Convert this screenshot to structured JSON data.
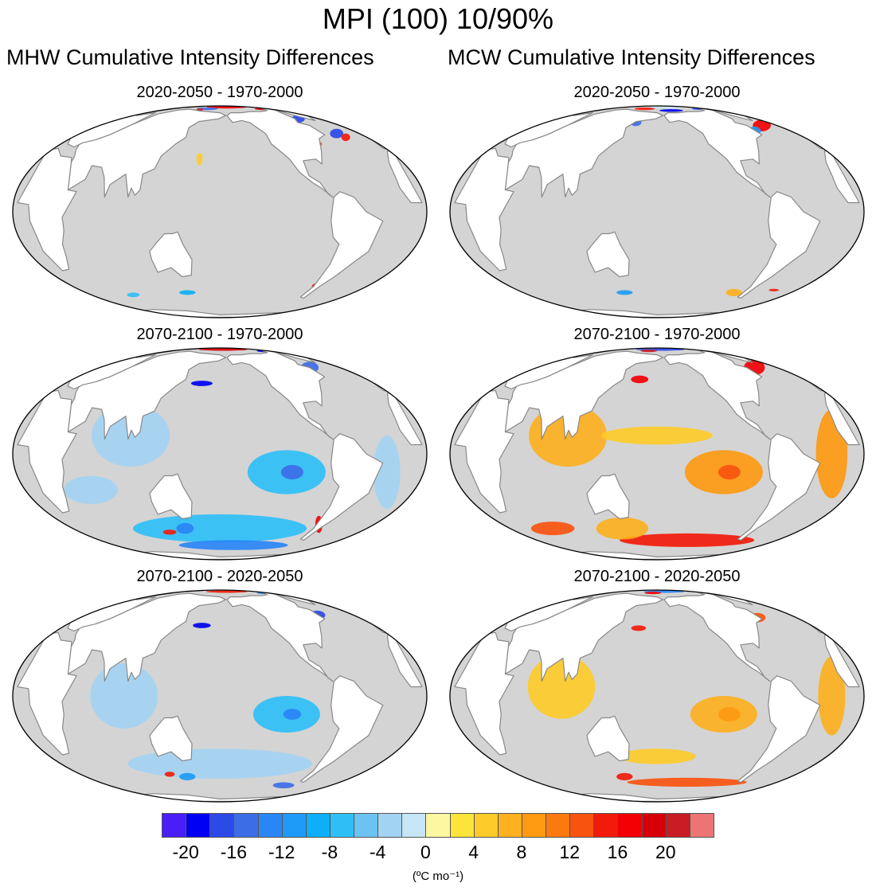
{
  "title": "MPI (100) 10/90%",
  "columns": [
    "MHW Cumulative Intensity Differences",
    "MCW Cumulative Intensity Differences"
  ],
  "panels": [
    {
      "title": "2020-2050 - 1970-2000",
      "variable": "MHW",
      "period": "2020-2050 minus 1970-2000"
    },
    {
      "title": "2020-2050 - 1970-2000",
      "variable": "MCW",
      "period": "2020-2050 minus 1970-2000"
    },
    {
      "title": "2070-2100 - 1970-2000",
      "variable": "MHW",
      "period": "2070-2100 minus 1970-2000"
    },
    {
      "title": "2070-2100 - 1970-2000",
      "variable": "MCW",
      "period": "2070-2100 minus 1970-2000"
    },
    {
      "title": "2070-2100 - 2020-2050",
      "variable": "MHW",
      "period": "2070-2100 minus 2020-2050"
    },
    {
      "title": "2070-2100 - 2020-2050",
      "variable": "MCW",
      "period": "2070-2100 minus 2020-2050"
    }
  ],
  "colorbar": {
    "colors": [
      "#4a1ff7",
      "#0000f5",
      "#2b4ae8",
      "#3d6de6",
      "#2a86f5",
      "#1e9bf7",
      "#0db0f7",
      "#2fbff7",
      "#6cc2f0",
      "#a3d3f2",
      "#c6e5f7",
      "#fdf7a1",
      "#fde43a",
      "#fdcb2a",
      "#fdb020",
      "#fd9a12",
      "#fb7a10",
      "#f85410",
      "#f21b0b",
      "#f40004",
      "#d70008",
      "#c81d24",
      "#ec7474"
    ],
    "tick_labels": [
      "-20",
      "-16",
      "-12",
      "-8",
      "-4",
      "0",
      "4",
      "8",
      "12",
      "16",
      "20"
    ],
    "unit_label": "(ºC mo⁻¹)"
  },
  "chart_data": {
    "type": "heatmap",
    "projection": "robinson-like global map, Pacific-centered",
    "variable_range": [
      -22,
      22
    ],
    "ticks": [
      -20,
      -16,
      -12,
      -8,
      -4,
      0,
      4,
      8,
      12,
      16,
      20
    ],
    "unit": "ºC mo⁻¹",
    "land_color": "#ffffff",
    "ocean_background_color": "#d4d4d4",
    "coast_color": "#888888",
    "panels": [
      {
        "title": "2020-2050 - 1970-2000",
        "patches": [
          {
            "lon": 200,
            "lat": 83,
            "rx": 60,
            "ry": 4,
            "v": 16
          },
          {
            "lon": 290,
            "lat": 78,
            "rx": 25,
            "ry": 4,
            "v": 18
          },
          {
            "lon": 150,
            "lat": 78,
            "rx": 25,
            "ry": 4,
            "v": -16
          },
          {
            "lon": 135,
            "lat": 76,
            "rx": 8,
            "ry": 3,
            "v": 20
          },
          {
            "lon": 300,
            "lat": 62,
            "rx": 10,
            "ry": 5,
            "v": -18
          },
          {
            "lon": 320,
            "lat": 48,
            "rx": 8,
            "ry": 4,
            "v": -18
          },
          {
            "lon": 325,
            "lat": 45,
            "rx": 5,
            "ry": 3,
            "v": 14
          },
          {
            "lon": 285,
            "lat": 40,
            "rx": 6,
            "ry": 2,
            "v": 12
          },
          {
            "lon": 160,
            "lat": 30,
            "rx": 3,
            "ry": 4,
            "v": 3
          },
          {
            "lon": 140,
            "lat": -50,
            "rx": 10,
            "ry": 2,
            "v": -10
          },
          {
            "lon": 70,
            "lat": -52,
            "rx": 8,
            "ry": 2,
            "v": -8
          },
          {
            "lon": 290,
            "lat": -45,
            "rx": 4,
            "ry": 2,
            "v": 14
          }
        ]
      },
      {
        "title": "2020-2050 - 1970-2000",
        "patches": [
          {
            "lon": 200,
            "lat": 82,
            "rx": 55,
            "ry": 3,
            "v": -2
          },
          {
            "lon": 290,
            "lat": 78,
            "rx": 25,
            "ry": 3,
            "v": -18
          },
          {
            "lon": 150,
            "lat": 78,
            "rx": 25,
            "ry": 4,
            "v": 14
          },
          {
            "lon": 210,
            "lat": 74,
            "rx": 25,
            "ry": 3,
            "v": -20
          },
          {
            "lon": 150,
            "lat": 58,
            "rx": 8,
            "ry": 4,
            "v": -16
          },
          {
            "lon": 320,
            "lat": 55,
            "rx": 12,
            "ry": 6,
            "v": 16
          },
          {
            "lon": 300,
            "lat": 50,
            "rx": 8,
            "ry": 4,
            "v": -12
          },
          {
            "lon": 275,
            "lat": -50,
            "rx": 10,
            "ry": 3,
            "v": 6
          },
          {
            "lon": 140,
            "lat": -50,
            "rx": 10,
            "ry": 2,
            "v": -12
          },
          {
            "lon": 320,
            "lat": -48,
            "rx": 6,
            "ry": 1,
            "v": 14
          }
        ]
      },
      {
        "title": "2070-2100 - 1970-2000",
        "patches": [
          {
            "lon": 190,
            "lat": 82,
            "rx": 70,
            "ry": 4,
            "v": 18
          },
          {
            "lon": 290,
            "lat": 78,
            "rx": 20,
            "ry": 4,
            "v": -20
          },
          {
            "lon": 160,
            "lat": 42,
            "rx": 12,
            "ry": 2,
            "v": -20
          },
          {
            "lon": 300,
            "lat": 55,
            "rx": 12,
            "ry": 6,
            "v": -16
          },
          {
            "lon": 100,
            "lat": 10,
            "rx": 35,
            "ry": 18,
            "v": -4
          },
          {
            "lon": 240,
            "lat": -10,
            "rx": 35,
            "ry": 12,
            "v": -8
          },
          {
            "lon": 245,
            "lat": -10,
            "rx": 10,
            "ry": 4,
            "v": -16
          },
          {
            "lon": 60,
            "lat": -20,
            "rx": 25,
            "ry": 8,
            "v": -4
          },
          {
            "lon": 180,
            "lat": -45,
            "rx": 100,
            "ry": 10,
            "v": -8
          },
          {
            "lon": 200,
            "lat": -60,
            "rx": 80,
            "ry": 5,
            "v": -14
          },
          {
            "lon": 140,
            "lat": -45,
            "rx": 10,
            "ry": 4,
            "v": -14
          },
          {
            "lon": 120,
            "lat": -48,
            "rx": 8,
            "ry": 2,
            "v": 14
          },
          {
            "lon": 290,
            "lat": -42,
            "rx": 4,
            "ry": 6,
            "v": 16
          },
          {
            "lon": 330,
            "lat": -10,
            "rx": 12,
            "ry": 20,
            "v": -4
          }
        ]
      },
      {
        "title": "2070-2100 - 1970-2000",
        "patches": [
          {
            "lon": 190,
            "lat": 82,
            "rx": 70,
            "ry": 4,
            "v": -18
          },
          {
            "lon": 160,
            "lat": 78,
            "rx": 20,
            "ry": 4,
            "v": 20
          },
          {
            "lon": 310,
            "lat": 55,
            "rx": 14,
            "ry": 8,
            "v": 16
          },
          {
            "lon": 160,
            "lat": 45,
            "rx": 10,
            "ry": 3,
            "v": 16
          },
          {
            "lon": 100,
            "lat": 10,
            "rx": 35,
            "ry": 18,
            "v": 6
          },
          {
            "lon": 240,
            "lat": -10,
            "rx": 35,
            "ry": 12,
            "v": 8
          },
          {
            "lon": 245,
            "lat": -10,
            "rx": 10,
            "ry": 4,
            "v": 12
          },
          {
            "lon": 335,
            "lat": 0,
            "rx": 14,
            "ry": 25,
            "v": 8
          },
          {
            "lon": 220,
            "lat": -55,
            "rx": 90,
            "ry": 6,
            "v": 14
          },
          {
            "lon": 140,
            "lat": -45,
            "rx": 30,
            "ry": 8,
            "v": 6
          },
          {
            "lon": 60,
            "lat": -45,
            "rx": 25,
            "ry": 5,
            "v": 12
          },
          {
            "lon": 180,
            "lat": 10,
            "rx": 50,
            "ry": 5,
            "v": 4
          }
        ]
      },
      {
        "title": "2070-2100 - 2020-2050",
        "patches": [
          {
            "lon": 200,
            "lat": 82,
            "rx": 60,
            "ry": 4,
            "v": 14
          },
          {
            "lon": 290,
            "lat": 78,
            "rx": 20,
            "ry": 4,
            "v": -14
          },
          {
            "lon": 160,
            "lat": 42,
            "rx": 10,
            "ry": 2,
            "v": -20
          },
          {
            "lon": 300,
            "lat": 50,
            "rx": 10,
            "ry": 4,
            "v": -18
          },
          {
            "lon": 95,
            "lat": 0,
            "rx": 30,
            "ry": 18,
            "v": -3
          },
          {
            "lon": 240,
            "lat": -10,
            "rx": 30,
            "ry": 10,
            "v": -8
          },
          {
            "lon": 245,
            "lat": -10,
            "rx": 8,
            "ry": 3,
            "v": -14
          },
          {
            "lon": 180,
            "lat": -40,
            "rx": 100,
            "ry": 10,
            "v": -4
          },
          {
            "lon": 270,
            "lat": -58,
            "rx": 15,
            "ry": 3,
            "v": -16
          },
          {
            "lon": 140,
            "lat": -50,
            "rx": 10,
            "ry": 3,
            "v": -12
          },
          {
            "lon": 120,
            "lat": -48,
            "rx": 6,
            "ry": 2,
            "v": 14
          }
        ]
      },
      {
        "title": "2070-2100 - 2020-2050",
        "patches": [
          {
            "lon": 200,
            "lat": 82,
            "rx": 60,
            "ry": 3,
            "v": -14
          },
          {
            "lon": 170,
            "lat": 78,
            "rx": 20,
            "ry": 4,
            "v": 16
          },
          {
            "lon": 300,
            "lat": 48,
            "rx": 10,
            "ry": 4,
            "v": 12
          },
          {
            "lon": 160,
            "lat": 40,
            "rx": 8,
            "ry": 2,
            "v": 14
          },
          {
            "lon": 95,
            "lat": 5,
            "rx": 30,
            "ry": 18,
            "v": 4
          },
          {
            "lon": 240,
            "lat": -10,
            "rx": 30,
            "ry": 10,
            "v": 6
          },
          {
            "lon": 245,
            "lat": -10,
            "rx": 10,
            "ry": 4,
            "v": 8
          },
          {
            "lon": 335,
            "lat": 0,
            "rx": 12,
            "ry": 22,
            "v": 5
          },
          {
            "lon": 220,
            "lat": -55,
            "rx": 80,
            "ry": 4,
            "v": 12
          },
          {
            "lon": 140,
            "lat": -50,
            "rx": 10,
            "ry": 3,
            "v": 14
          },
          {
            "lon": 180,
            "lat": -35,
            "rx": 40,
            "ry": 5,
            "v": 4
          }
        ]
      }
    ]
  }
}
